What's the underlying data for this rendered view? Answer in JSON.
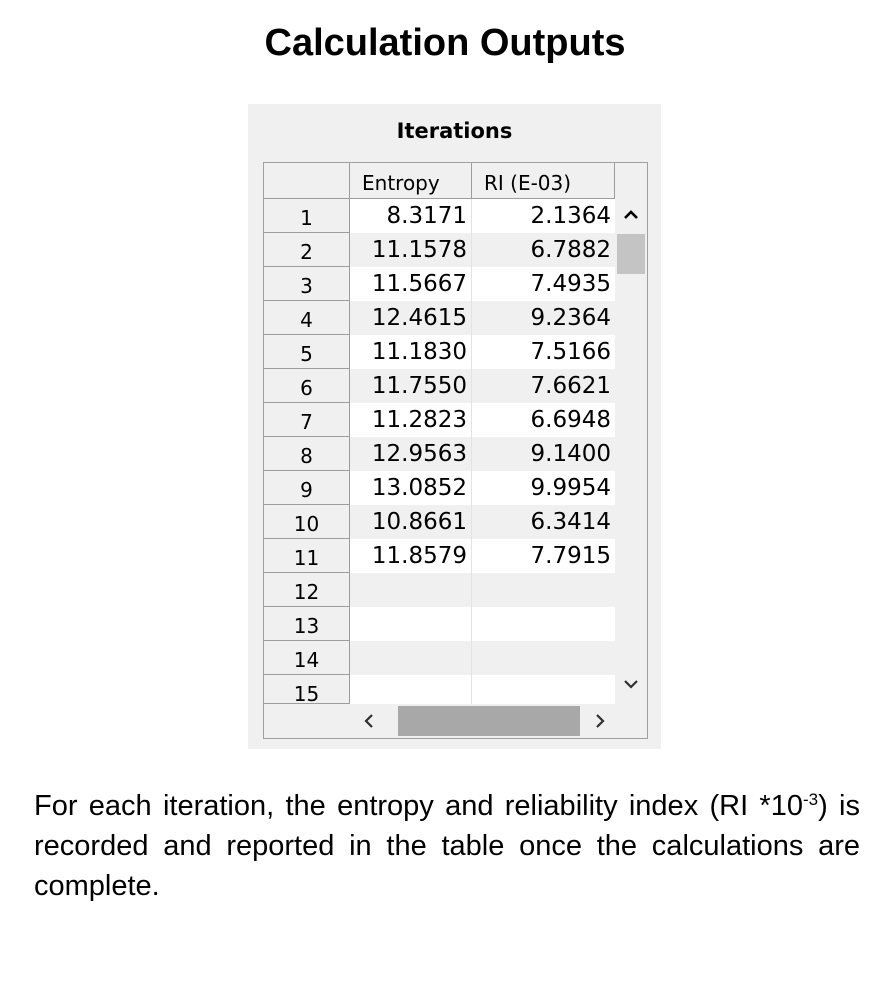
{
  "page": {
    "title": "Calculation Outputs"
  },
  "panel": {
    "title": "Iterations"
  },
  "table": {
    "columns": [
      "Entropy",
      "RI (E-03)"
    ],
    "rows": [
      {
        "label": "1",
        "entropy": "8.3171",
        "ri": "2.1364"
      },
      {
        "label": "2",
        "entropy": "11.1578",
        "ri": "6.7882"
      },
      {
        "label": "3",
        "entropy": "11.5667",
        "ri": "7.4935"
      },
      {
        "label": "4",
        "entropy": "12.4615",
        "ri": "9.2364"
      },
      {
        "label": "5",
        "entropy": "11.1830",
        "ri": "7.5166"
      },
      {
        "label": "6",
        "entropy": "11.7550",
        "ri": "7.6621"
      },
      {
        "label": "7",
        "entropy": "11.2823",
        "ri": "6.6948"
      },
      {
        "label": "8",
        "entropy": "12.9563",
        "ri": "9.1400"
      },
      {
        "label": "9",
        "entropy": "13.0852",
        "ri": "9.9954"
      },
      {
        "label": "10",
        "entropy": "10.8661",
        "ri": "6.3414"
      },
      {
        "label": "11",
        "entropy": "11.8579",
        "ri": "7.7915"
      },
      {
        "label": "12",
        "entropy": "",
        "ri": ""
      },
      {
        "label": "13",
        "entropy": "",
        "ri": ""
      },
      {
        "label": "14",
        "entropy": "",
        "ri": ""
      },
      {
        "label": "15",
        "entropy": "",
        "ri": ""
      }
    ]
  },
  "scrollbars": {
    "up_icon": "chevron-up-icon",
    "down_icon": "chevron-down-icon",
    "left_icon": "chevron-left-icon",
    "right_icon": "chevron-right-icon"
  },
  "description": {
    "text_before": "For each iteration, the entropy and reliability index (RI *10",
    "superscript": "-3",
    "text_after": ") is recorded and reported in the table once the calculations are complete."
  },
  "colors": {
    "panel_bg": "#f0f0f0",
    "alt_row": "#f0f0f0",
    "grid_line": "#9c9c9c",
    "thumb": "#a8a8a8"
  }
}
